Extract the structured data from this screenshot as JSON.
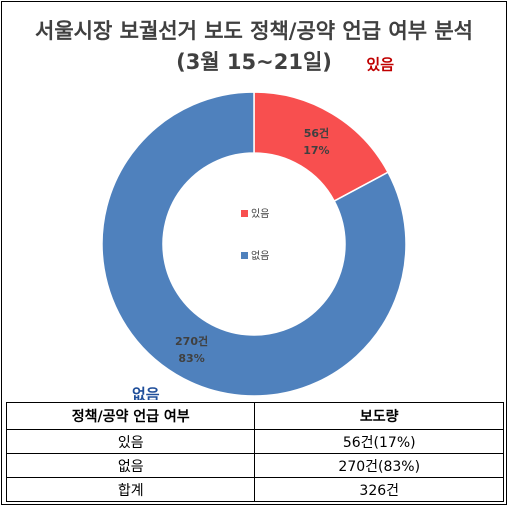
{
  "title_line1": "서울시장 보궐선거 보도 정책/공약 언급 여부 분석",
  "title_line2": "(3월 15~21일)",
  "colors": {
    "yes": "#f84f4f",
    "no": "#4f81bd",
    "yes_label": "#c00000",
    "no_label": "#1f4e9a"
  },
  "chart_data": {
    "type": "pie",
    "variant": "donut",
    "categories": [
      "있음",
      "없음"
    ],
    "values": [
      56,
      270
    ],
    "units": "건",
    "percent_labels": [
      "17%",
      "83%"
    ],
    "count_labels": [
      "56건",
      "270건"
    ],
    "legend": [
      "있음",
      "없음"
    ],
    "legend_position": "center"
  },
  "table": {
    "headers": [
      "정책/공약 언급 여부",
      "보도량"
    ],
    "rows": [
      [
        "있음",
        "56건(17%)"
      ],
      [
        "없음",
        "270건(83%)"
      ],
      [
        "합계",
        "326건"
      ]
    ]
  }
}
